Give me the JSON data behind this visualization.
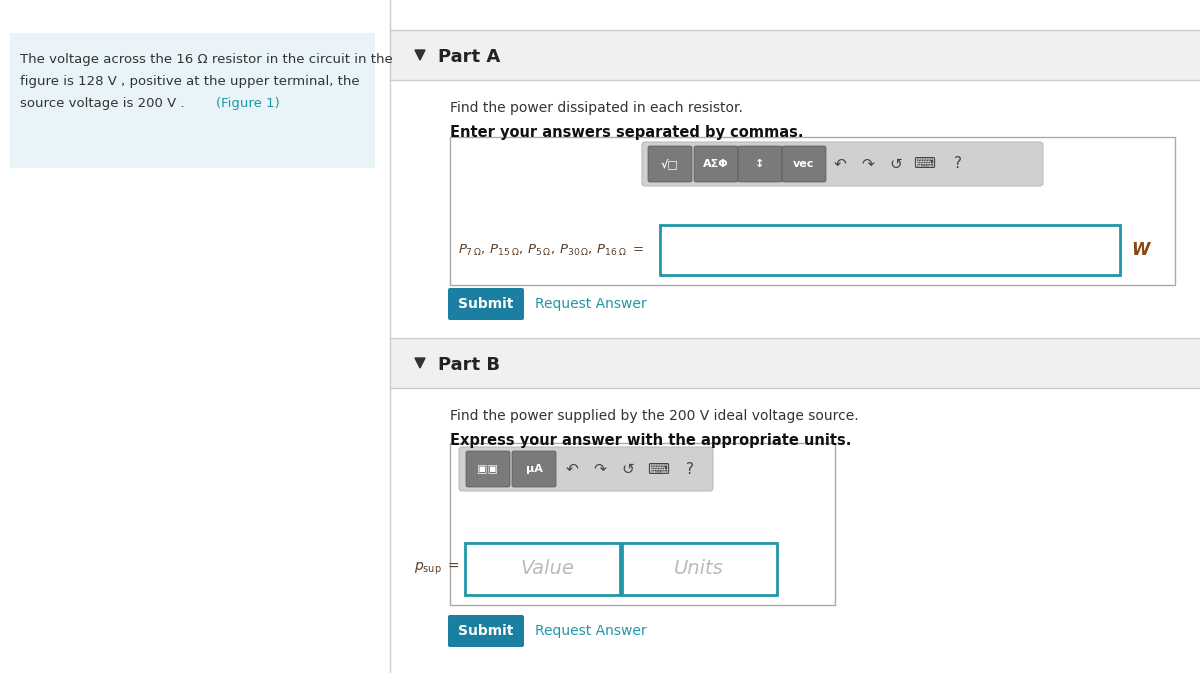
{
  "bg_color": "#ffffff",
  "left_panel_bg": "#e8f4f8",
  "right_panel_bg": "#f5f5f5",
  "part_a_label": "Part A",
  "part_b_label": "Part B",
  "part_a_instruction1": "Find the power dissipated in each resistor.",
  "part_a_instruction2": "Enter your answers separated by commas.",
  "part_b_instruction1": "Find the power supplied by the 200 V ideal voltage source.",
  "part_b_instruction2": "Express your answer with the appropriate units.",
  "submit_color": "#1a7fa0",
  "link_color": "#2196a8",
  "input_border_color": "#2196a8",
  "value_placeholder": "Value",
  "units_placeholder": "Units",
  "W_label": "W",
  "divider_color": "#cccccc",
  "text_color": "#333333",
  "eq_color": "#5a3e28",
  "header_bg": "#f0f0f0",
  "toolbar_bg": "#d0d0d0",
  "btn_color": "#7a7a7a"
}
